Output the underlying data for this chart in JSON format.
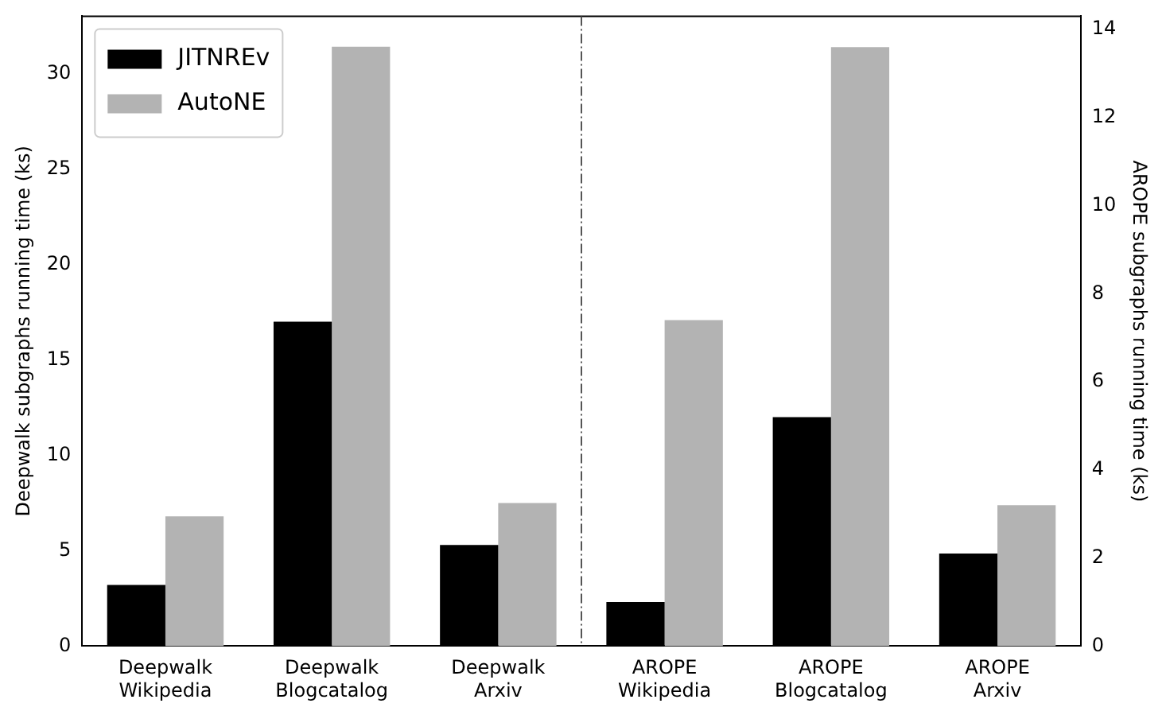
{
  "chart_data": {
    "type": "bar",
    "categories": [
      "Deepwalk Wikipedia",
      "Deepwalk Blogcatalog",
      "Deepwalk Arxiv",
      "AROPE Wikipedia",
      "AROPE Blogcatalog",
      "AROPE Arxiv"
    ],
    "series": [
      {
        "name": "JITNREv",
        "color": "#000000",
        "values": [
          3.2,
          17.0,
          5.3,
          null,
          null,
          null
        ]
      },
      {
        "name": "AutoNE",
        "color": "#b3b3b3",
        "values": [
          6.8,
          31.4,
          7.5,
          null,
          null,
          null
        ]
      },
      {
        "color": "#000000",
        "axis": "y2",
        "values": [
          null,
          null,
          null,
          1.0,
          5.2,
          2.1
        ]
      },
      {
        "color": "#b3b3b3",
        "axis": "y2",
        "values": [
          null,
          null,
          null,
          7.4,
          13.6,
          3.2
        ]
      }
    ],
    "ylabel": "Deepwalk subgraphs running time (ks)",
    "y2label": "AROPE subgraphs running time (ks)",
    "ylim": [
      0,
      33
    ],
    "yticks": [
      0,
      5,
      10,
      15,
      20,
      25,
      30
    ],
    "y2lim": [
      0,
      14.3
    ],
    "y2ticks": [
      0,
      2,
      4,
      6,
      8,
      10,
      12,
      14
    ],
    "legend": "top left",
    "grid": false
  }
}
